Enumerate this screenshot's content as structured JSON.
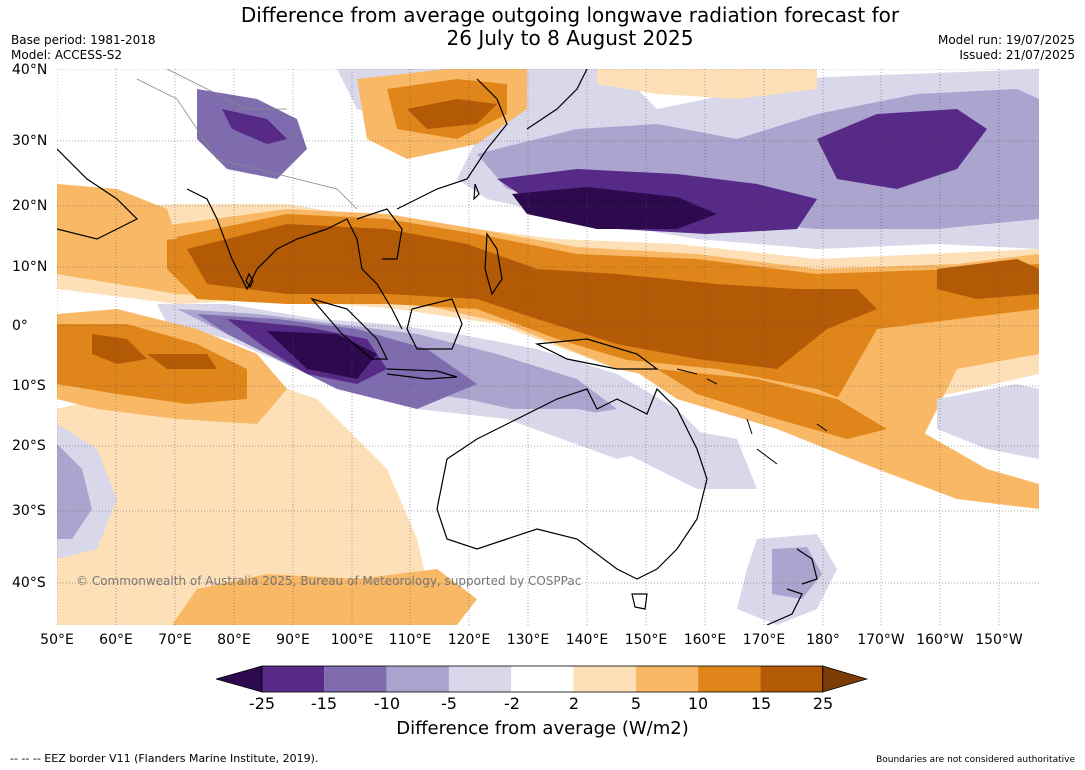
{
  "title_line1": "Difference from average outgoing longwave radiation forecast for",
  "title_line2": "26 July to 8 August 2025",
  "base_period": "Base period: 1981-2018",
  "model": "Model: ACCESS-S2",
  "model_run": "Model run: 19/07/2025",
  "issued": "Issued: 21/07/2025",
  "copyright": "© Commonwealth of Australia 2025, Bureau of Meteorology, supported by COSPPac",
  "footer_left": "--  --  -- EEZ border V11 (Flanders Marine Institute, 2019).",
  "footer_right": "Boundaries are not considered authoritative",
  "lat_labels": [
    "40°N",
    "30°N",
    "20°N",
    "10°N",
    "0°",
    "10°S",
    "20°S",
    "30°S",
    "40°S"
  ],
  "lon_labels": [
    "50°E",
    "60°E",
    "70°E",
    "80°E",
    "90°E",
    "100°E",
    "110°E",
    "120°E",
    "130°E",
    "140°E",
    "150°E",
    "160°E",
    "170°E",
    "180°",
    "170°W",
    "160°W",
    "150°W"
  ],
  "legend": {
    "title": "Difference from average (W/m2)",
    "ticks": [
      "-25",
      "-15",
      "-10",
      "-5",
      "-2",
      "2",
      "5",
      "10",
      "15",
      "25"
    ],
    "colors": [
      "#2d0a4e",
      "#572a88",
      "#7f6cae",
      "#aaa4cf",
      "#d8d8ea",
      "#ffffff",
      "#fde0b7",
      "#f9b865",
      "#e08519",
      "#b35a07",
      "#7d3b06"
    ]
  },
  "map_colors": {
    "neg25": "#2d0a4e",
    "neg15": "#572a88",
    "neg10": "#7f6cae",
    "neg5": "#aaa4cf",
    "neg2": "#d8d8ea",
    "pos2": "#fde0b7",
    "pos5": "#f9b865",
    "pos10": "#e08519",
    "pos15": "#b35a07"
  }
}
